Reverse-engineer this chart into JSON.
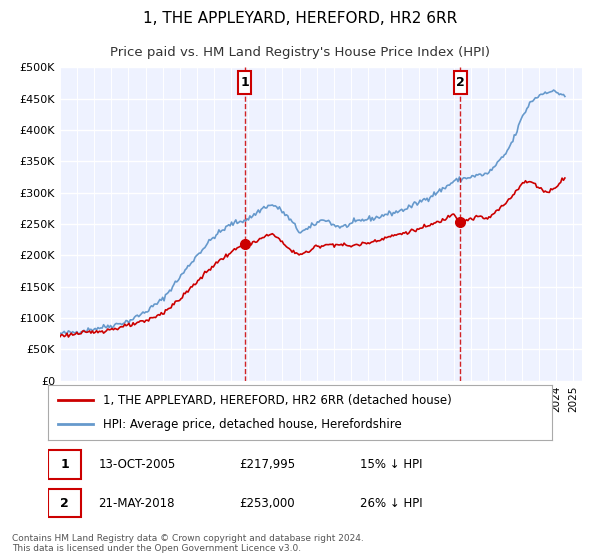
{
  "title": "1, THE APPLEYARD, HEREFORD, HR2 6RR",
  "subtitle": "Price paid vs. HM Land Registry's House Price Index (HPI)",
  "ylabel_ticks": [
    "£0",
    "£50K",
    "£100K",
    "£150K",
    "£200K",
    "£250K",
    "£300K",
    "£350K",
    "£400K",
    "£450K",
    "£500K"
  ],
  "ytick_values": [
    0,
    50000,
    100000,
    150000,
    200000,
    250000,
    300000,
    350000,
    400000,
    450000,
    500000
  ],
  "xmin": 1995.0,
  "xmax": 2025.5,
  "ymin": 0,
  "ymax": 500000,
  "marker1_date": 2005.79,
  "marker1_price": 217995,
  "marker1_label": "1",
  "marker1_date_str": "13-OCT-2005",
  "marker1_price_str": "£217,995",
  "marker1_hpi_str": "15% ↓ HPI",
  "marker2_date": 2018.39,
  "marker2_price": 253000,
  "marker2_label": "2",
  "marker2_date_str": "21-MAY-2018",
  "marker2_price_str": "£253,000",
  "marker2_hpi_str": "26% ↓ HPI",
  "red_line_color": "#cc0000",
  "blue_line_color": "#6699cc",
  "marker_color": "#cc0000",
  "dashed_line_color": "#cc0000",
  "legend_label_red": "1, THE APPLEYARD, HEREFORD, HR2 6RR (detached house)",
  "legend_label_blue": "HPI: Average price, detached house, Herefordshire",
  "footer_text": "Contains HM Land Registry data © Crown copyright and database right 2024.\nThis data is licensed under the Open Government Licence v3.0.",
  "plot_background": "#eef2ff",
  "grid_color": "#ffffff",
  "title_fontsize": 11,
  "subtitle_fontsize": 9.5,
  "tick_fontsize": 8,
  "legend_fontsize": 8.5,
  "hpi_waypoints": [
    [
      1995.0,
      75000
    ],
    [
      1996.0,
      78000
    ],
    [
      1997.0,
      83000
    ],
    [
      1998.0,
      88000
    ],
    [
      1999.0,
      95000
    ],
    [
      2000.0,
      110000
    ],
    [
      2001.0,
      130000
    ],
    [
      2002.0,
      165000
    ],
    [
      2003.0,
      200000
    ],
    [
      2004.0,
      230000
    ],
    [
      2005.0,
      250000
    ],
    [
      2006.0,
      258000
    ],
    [
      2007.0,
      278000
    ],
    [
      2007.5,
      280000
    ],
    [
      2008.0,
      270000
    ],
    [
      2008.5,
      255000
    ],
    [
      2009.0,
      237000
    ],
    [
      2009.5,
      242000
    ],
    [
      2010.0,
      252000
    ],
    [
      2010.5,
      258000
    ],
    [
      2011.0,
      248000
    ],
    [
      2011.5,
      245000
    ],
    [
      2012.0,
      250000
    ],
    [
      2012.5,
      255000
    ],
    [
      2013.0,
      258000
    ],
    [
      2013.5,
      260000
    ],
    [
      2014.0,
      265000
    ],
    [
      2014.5,
      268000
    ],
    [
      2015.0,
      272000
    ],
    [
      2015.5,
      278000
    ],
    [
      2016.0,
      285000
    ],
    [
      2016.5,
      292000
    ],
    [
      2017.0,
      300000
    ],
    [
      2017.5,
      308000
    ],
    [
      2018.0,
      318000
    ],
    [
      2018.5,
      322000
    ],
    [
      2019.0,
      325000
    ],
    [
      2019.5,
      328000
    ],
    [
      2020.0,
      330000
    ],
    [
      2020.5,
      345000
    ],
    [
      2021.0,
      360000
    ],
    [
      2021.5,
      385000
    ],
    [
      2022.0,
      420000
    ],
    [
      2022.5,
      445000
    ],
    [
      2023.0,
      455000
    ],
    [
      2023.5,
      462000
    ],
    [
      2024.0,
      460000
    ],
    [
      2024.5,
      455000
    ]
  ],
  "red_waypoints": [
    [
      1995.0,
      72000
    ],
    [
      1996.0,
      75000
    ],
    [
      1997.0,
      78000
    ],
    [
      1998.0,
      82000
    ],
    [
      1999.0,
      88000
    ],
    [
      2000.0,
      95000
    ],
    [
      2001.0,
      108000
    ],
    [
      2002.0,
      130000
    ],
    [
      2003.0,
      158000
    ],
    [
      2004.0,
      185000
    ],
    [
      2005.0,
      205000
    ],
    [
      2005.79,
      217995
    ],
    [
      2006.0,
      215000
    ],
    [
      2007.0,
      230000
    ],
    [
      2007.5,
      235000
    ],
    [
      2008.0,
      220000
    ],
    [
      2008.5,
      207000
    ],
    [
      2009.0,
      202000
    ],
    [
      2009.5,
      205000
    ],
    [
      2010.0,
      215000
    ],
    [
      2011.0,
      218000
    ],
    [
      2012.0,
      215000
    ],
    [
      2013.0,
      220000
    ],
    [
      2014.0,
      228000
    ],
    [
      2015.0,
      235000
    ],
    [
      2016.0,
      242000
    ],
    [
      2017.0,
      252000
    ],
    [
      2017.5,
      258000
    ],
    [
      2018.0,
      268000
    ],
    [
      2018.39,
      253000
    ],
    [
      2018.5,
      255000
    ],
    [
      2019.0,
      258000
    ],
    [
      2019.5,
      262000
    ],
    [
      2020.0,
      258000
    ],
    [
      2020.5,
      270000
    ],
    [
      2021.0,
      282000
    ],
    [
      2021.5,
      298000
    ],
    [
      2022.0,
      315000
    ],
    [
      2022.5,
      318000
    ],
    [
      2023.0,
      308000
    ],
    [
      2023.5,
      300000
    ],
    [
      2024.0,
      310000
    ],
    [
      2024.5,
      325000
    ]
  ]
}
